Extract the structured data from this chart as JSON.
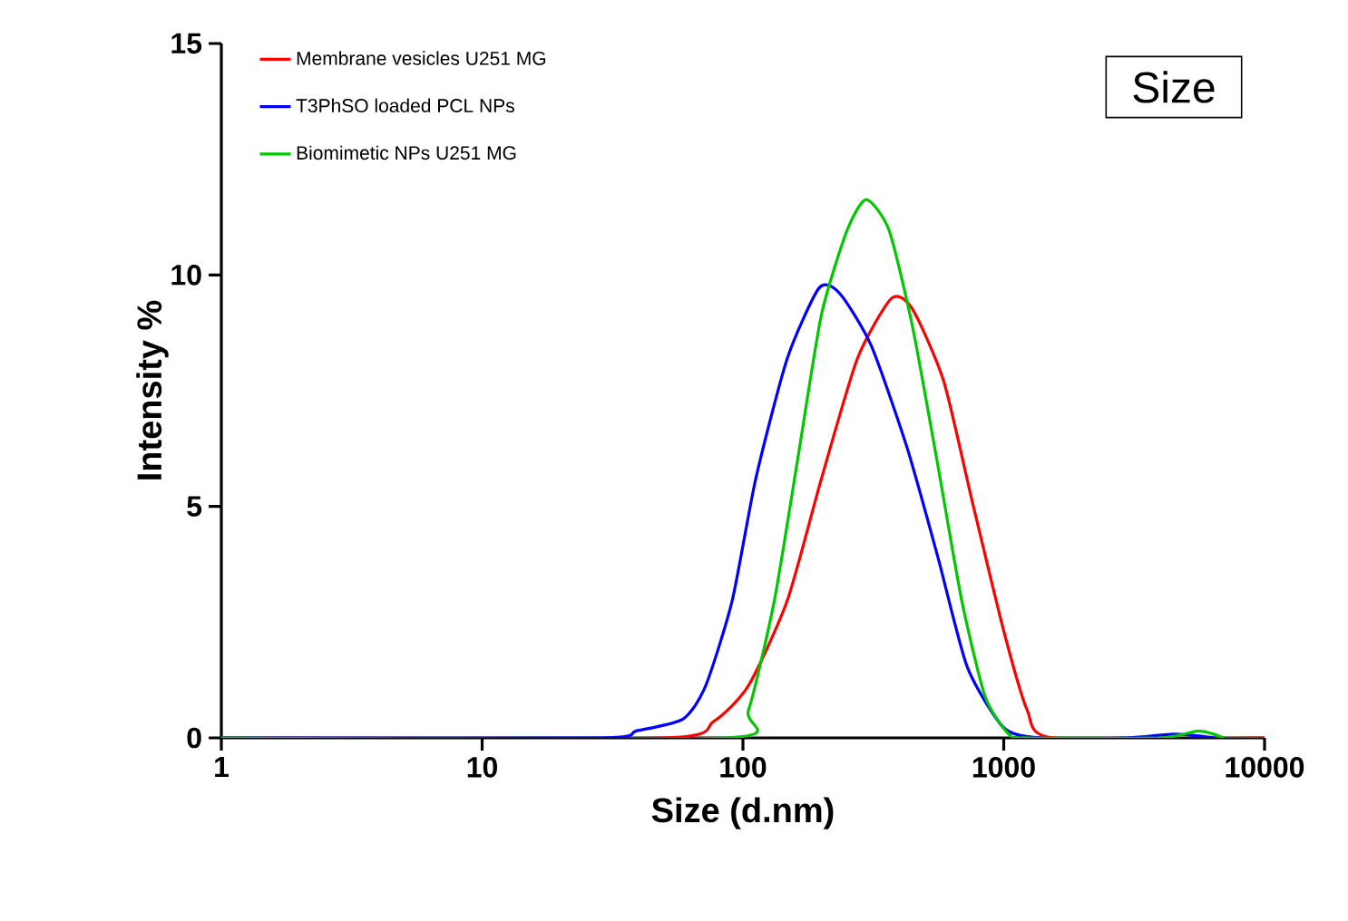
{
  "chart_data": {
    "type": "line",
    "xlabel": "Size (d.nm)",
    "ylabel": "Intensity %",
    "log": "x",
    "xlim": [
      1,
      10000
    ],
    "xticks": [
      1,
      10,
      100,
      1000,
      10000
    ],
    "ylim": [
      0,
      15
    ],
    "yticks": [
      0,
      5,
      10,
      15
    ],
    "grid": false,
    "legend": "top left",
    "marker": "none",
    "line_style": "solid",
    "annotations": [
      "Size"
    ],
    "series": [
      {
        "name": "Membrane vesicles U251 MG",
        "color": "#ff0000",
        "x": [
          1,
          50,
          77,
          105,
          148,
          200,
          275,
          372,
          447,
          589,
          760,
          1000,
          1230,
          1550,
          10000
        ],
        "values": [
          0,
          0,
          0.35,
          1.13,
          2.97,
          5.6,
          8.2,
          9.5,
          9.26,
          7.7,
          5.07,
          2.31,
          0.6,
          0,
          0
        ]
      },
      {
        "name": "T3PhSO loaded PCL NPs",
        "color": "#0000ff",
        "x": [
          1,
          28,
          39,
          59,
          72,
          91,
          112,
          148,
          196,
          235,
          310,
          427,
          560,
          725,
          1000,
          1380,
          3000,
          4500,
          6500
        ],
        "values": [
          0,
          0,
          0.15,
          0.41,
          1.13,
          2.97,
          5.6,
          8.2,
          9.72,
          9.6,
          8.48,
          6.25,
          3.89,
          1.53,
          0.22,
          0,
          0,
          0.08,
          0
        ]
      },
      {
        "name": "Biomimetic NPs U251 MG",
        "color": "#00c800",
        "x": [
          1,
          86,
          105,
          132,
          163,
          200,
          251,
          297,
          363,
          447,
          560,
          690,
          850,
          1050,
          1250,
          4000,
          5600,
          7000
        ],
        "values": [
          0,
          0,
          0.6,
          2.97,
          6.1,
          9.14,
          10.97,
          11.63,
          10.97,
          8.88,
          5.86,
          2.97,
          0.88,
          0.07,
          0,
          0,
          0.15,
          0
        ]
      }
    ]
  }
}
